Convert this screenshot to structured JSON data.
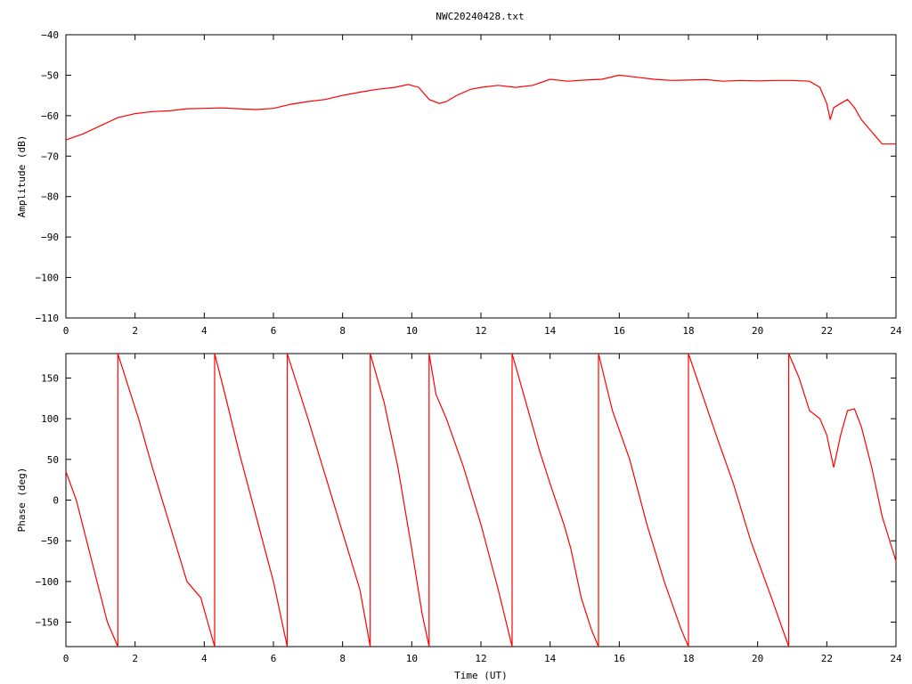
{
  "chart_data": [
    {
      "type": "line",
      "title": "NWC20240428.txt",
      "xlabel": "",
      "ylabel": "Amplitude (dB)",
      "xlim": [
        0,
        24
      ],
      "ylim": [
        -110,
        -40
      ],
      "x_ticks": [
        0,
        2,
        4,
        6,
        8,
        10,
        12,
        14,
        16,
        18,
        20,
        22,
        24
      ],
      "y_ticks": [
        -110,
        -100,
        -90,
        -80,
        -70,
        -60,
        -50,
        -40
      ],
      "grid": false,
      "color": "#ff0000",
      "series": [
        {
          "x": [
            0,
            0.5,
            1.0,
            1.5,
            2.0,
            2.5,
            3.0,
            3.5,
            4.0,
            4.5,
            5.0,
            5.5,
            6.0,
            6.5,
            7.0,
            7.5,
            8.0,
            8.5,
            9.0,
            9.5,
            9.9,
            10.2,
            10.5,
            10.8,
            11.0,
            11.3,
            11.7,
            12.0,
            12.5,
            13.0,
            13.5,
            14.0,
            14.5,
            15.0,
            15.5,
            16.0,
            16.5,
            17.0,
            17.5,
            18.0,
            18.5,
            19.0,
            19.5,
            20.0,
            20.5,
            21.0,
            21.5,
            21.8,
            22.0,
            22.1,
            22.2,
            22.4,
            22.6,
            22.8,
            23.0,
            23.3,
            23.6,
            24.0
          ],
          "y": [
            -66,
            -64.5,
            -62.5,
            -60.5,
            -59.5,
            -59,
            -58.8,
            -58.3,
            -58.2,
            -58.1,
            -58.3,
            -58.5,
            -58.2,
            -57.2,
            -56.5,
            -56,
            -55,
            -54.2,
            -53.5,
            -53,
            -52.3,
            -53,
            -56,
            -57,
            -56.5,
            -55,
            -53.5,
            -53,
            -52.5,
            -53,
            -52.5,
            -51,
            -51.5,
            -51.2,
            -51,
            -50,
            -50.5,
            -51,
            -51.3,
            -51.2,
            -51.1,
            -51.5,
            -51.3,
            -51.4,
            -51.3,
            -51.3,
            -51.5,
            -53,
            -57,
            -61,
            -58,
            -57,
            -56,
            -58,
            -61,
            -64,
            -67,
            -67
          ]
        }
      ]
    },
    {
      "type": "line",
      "title": "",
      "xlabel": "Time (UT)",
      "ylabel": "Phase (deg)",
      "xlim": [
        0,
        24
      ],
      "ylim": [
        -180,
        180
      ],
      "x_ticks": [
        0,
        2,
        4,
        6,
        8,
        10,
        12,
        14,
        16,
        18,
        20,
        22,
        24
      ],
      "y_ticks": [
        -150,
        -100,
        -50,
        0,
        50,
        100,
        150
      ],
      "grid": false,
      "color": "#ff0000",
      "series": [
        {
          "x": [
            0,
            0.3,
            0.6,
            0.9,
            1.2,
            1.5,
            1.5,
            1.8,
            2.1,
            2.5,
            3.0,
            3.5,
            3.9,
            4.1,
            4.3,
            4.3,
            4.6,
            5.0,
            5.5,
            6.0,
            6.4,
            6.4,
            7.0,
            7.5,
            8.0,
            8.5,
            8.8,
            8.8,
            9.2,
            9.6,
            10.0,
            10.3,
            10.5,
            10.5,
            10.7,
            11.0,
            11.5,
            12.0,
            12.5,
            12.9,
            12.9,
            13.3,
            13.7,
            14.0,
            14.4,
            14.6,
            14.9,
            15.2,
            15.4,
            15.4,
            15.8,
            16.3,
            16.8,
            17.3,
            17.8,
            18.0,
            18.0,
            18.4,
            18.8,
            19.3,
            19.8,
            20.4,
            20.9,
            20.9,
            21.2,
            21.5,
            21.8,
            22.0,
            22.1,
            22.2,
            22.4,
            22.6,
            22.8,
            23.0,
            23.3,
            23.6,
            24.0
          ],
          "y": [
            35,
            0,
            -50,
            -100,
            -150,
            -180,
            180,
            140,
            100,
            40,
            -30,
            -100,
            -120,
            -150,
            -180,
            180,
            130,
            60,
            -20,
            -100,
            -180,
            180,
            100,
            30,
            -40,
            -110,
            -180,
            180,
            120,
            40,
            -60,
            -140,
            -180,
            180,
            130,
            100,
            40,
            -30,
            -110,
            -180,
            180,
            120,
            60,
            20,
            -30,
            -60,
            -120,
            -160,
            -180,
            180,
            110,
            50,
            -30,
            -100,
            -160,
            -180,
            180,
            130,
            80,
            20,
            -50,
            -120,
            -180,
            180,
            150,
            110,
            100,
            80,
            60,
            40,
            80,
            110,
            112,
            90,
            40,
            -20,
            -75
          ]
        }
      ]
    }
  ]
}
